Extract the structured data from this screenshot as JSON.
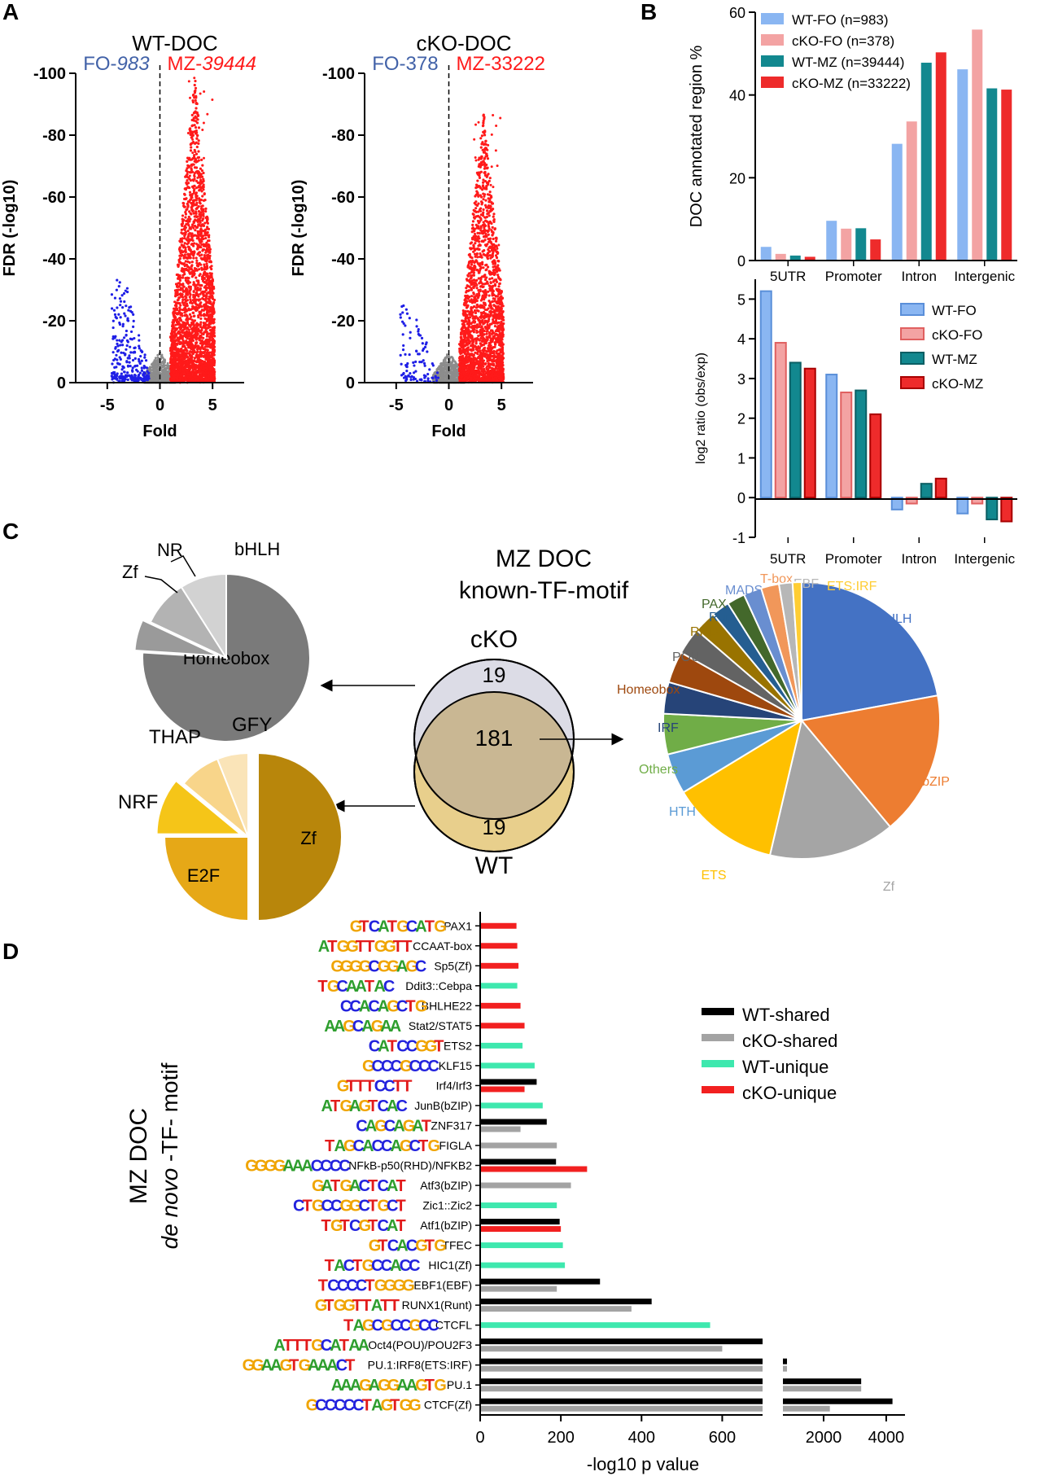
{
  "panels": {
    "A": "A",
    "B": "B",
    "C": "C",
    "D": "D"
  },
  "colors": {
    "blue": "#1f1fe6",
    "red": "#ff1a1a",
    "gray": "#8c8c8c",
    "wtfo": "#8ab6f2",
    "ckofo": "#f3a3a3",
    "wtmz": "#12888f",
    "ckomz": "#ee2b2b",
    "wt_shared": "#000000",
    "cko_shared": "#a3a3a3",
    "wt_unique": "#3ee8ae",
    "cko_unique": "#f22020"
  },
  "chart_data": [
    {
      "id": "volcano-wt",
      "type": "scatter",
      "title": "WT-DOC",
      "left_label": {
        "prefix": "FO-",
        "num": "983"
      },
      "right_label": {
        "prefix": "MZ-",
        "num": "39444"
      },
      "xlabel": "Fold",
      "ylabel": "FDR (-log10)",
      "xlim": [
        -8,
        8
      ],
      "ylim": [
        0,
        -100
      ],
      "xticks": [
        "-5",
        "0",
        "5"
      ],
      "yticks": [
        "-100",
        "-80",
        "-60",
        "-40",
        "-20",
        "0"
      ],
      "fo_count": 983,
      "mz_count": 39444,
      "fo_max_fdr": 38,
      "mz_max_fdr": 99
    },
    {
      "id": "volcano-cko",
      "type": "scatter",
      "title": "cKO-DOC",
      "left_label": {
        "prefix": "FO-",
        "num": "378"
      },
      "right_label": {
        "prefix": "MZ-",
        "num": "33222"
      },
      "xlabel": "Fold",
      "ylabel": "FDR (-log10)",
      "xlim": [
        -8,
        8
      ],
      "ylim": [
        0,
        -100
      ],
      "xticks": [
        "-5",
        "0",
        "5"
      ],
      "yticks": [
        "-100",
        "-80",
        "-60",
        "-40",
        "-20",
        "0"
      ],
      "fo_count": 378,
      "mz_count": 33222,
      "fo_max_fdr": 28,
      "mz_max_fdr": 87
    },
    {
      "id": "annot-bar",
      "type": "bar",
      "ylabel": "DOC annotated region %",
      "ylim": [
        0,
        60
      ],
      "yticks": [
        "0",
        "20",
        "40",
        "60"
      ],
      "categories": [
        "5UTR",
        "Promoter",
        "Intron",
        "Intergenic"
      ],
      "series": [
        {
          "name": "WT-FO (n=983)",
          "color": "#8ab6f2",
          "values": [
            3.3,
            9.6,
            28.2,
            46.2
          ]
        },
        {
          "name": "cKO-FO (n=378)",
          "color": "#f3a3a3",
          "values": [
            1.6,
            7.7,
            33.6,
            55.8
          ]
        },
        {
          "name": "WT-MZ (n=39444)",
          "color": "#12888f",
          "values": [
            1.2,
            7.8,
            47.8,
            41.6
          ]
        },
        {
          "name": "cKO-MZ (n=33222)",
          "color": "#ee2b2b",
          "values": [
            0.9,
            5.1,
            50.3,
            41.3
          ]
        }
      ],
      "legend_position": "top-left"
    },
    {
      "id": "log2-bar",
      "type": "bar",
      "ylabel": "log2 ratio (obs/exp)",
      "ylim": [
        -1,
        5.5
      ],
      "yticks": [
        "-1",
        "0",
        "1",
        "2",
        "3",
        "4",
        "5"
      ],
      "categories": [
        "5UTR",
        "Promoter",
        "Intron",
        "Intergenic"
      ],
      "series": [
        {
          "name": "WT-FO",
          "color": "#8ab6f2",
          "values": [
            5.2,
            3.1,
            -0.3,
            -0.4
          ]
        },
        {
          "name": "cKO-FO",
          "color": "#f3a3a3",
          "values": [
            3.9,
            2.65,
            -0.15,
            -0.15
          ]
        },
        {
          "name": "WT-MZ",
          "color": "#12888f",
          "values": [
            3.4,
            2.7,
            0.35,
            -0.55
          ]
        },
        {
          "name": "cKO-MZ",
          "color": "#ee2b2b",
          "values": [
            3.25,
            2.1,
            0.48,
            -0.6
          ]
        }
      ],
      "legend_position": "top-right"
    },
    {
      "id": "venn",
      "type": "other",
      "title_line1": "MZ DOC",
      "title_line2": "known-TF-motif",
      "top_label": "cKO",
      "bottom_label": "WT",
      "cko_only": "19",
      "shared": "181",
      "wt_only": "19"
    },
    {
      "id": "pie-cko-unique",
      "type": "pie",
      "slices": [
        {
          "label": "Homeobox",
          "value": 76,
          "color": "#7a7a7a"
        },
        {
          "label": "Zf",
          "value": 6,
          "color": "#9a9a9a"
        },
        {
          "label": "NR",
          "value": 9,
          "color": "#b3b3b3"
        },
        {
          "label": "bHLH",
          "value": 9,
          "color": "#d2d2d2"
        }
      ]
    },
    {
      "id": "pie-wt-unique",
      "type": "pie",
      "slices": [
        {
          "label": "Zf",
          "value": 50,
          "color": "#b8860b"
        },
        {
          "label": "E2F",
          "value": 25,
          "color": "#e6a817"
        },
        {
          "label": "NRF",
          "value": 11,
          "color": "#f5c518"
        },
        {
          "label": "THAP",
          "value": 8,
          "color": "#f8d58a"
        },
        {
          "label": "GFY",
          "value": 6,
          "color": "#fae4b8"
        }
      ]
    },
    {
      "id": "pie-shared",
      "type": "pie",
      "slices": [
        {
          "label": "bHLH",
          "value": 21,
          "color": "#4472c4"
        },
        {
          "label": "bZIP",
          "value": 16,
          "color": "#ed7d31"
        },
        {
          "label": "Zf",
          "value": 14,
          "color": "#a5a5a5"
        },
        {
          "label": "ETS",
          "value": 12,
          "color": "#ffc000"
        },
        {
          "label": "HTH",
          "value": 4.5,
          "color": "#5b9bd5"
        },
        {
          "label": "Others",
          "value": 4.5,
          "color": "#70ad47"
        },
        {
          "label": "IRF",
          "value": 3.5,
          "color": "#264478"
        },
        {
          "label": "Homeobox",
          "value": 3.5,
          "color": "#9e480e"
        },
        {
          "label": "POU",
          "value": 3,
          "color": "#636363"
        },
        {
          "label": "RHD",
          "value": 2.5,
          "color": "#997300"
        },
        {
          "label": "Runt",
          "value": 2,
          "color": "#255e91"
        },
        {
          "label": "PAX",
          "value": 2,
          "color": "#43682b"
        },
        {
          "label": "MADS",
          "value": 2,
          "color": "#698ed0"
        },
        {
          "label": "T-box",
          "value": 2,
          "color": "#f1975a"
        },
        {
          "label": "EBF",
          "value": 1.5,
          "color": "#b7b7b7"
        },
        {
          "label": "ETS:IRF",
          "value": 1,
          "color": "#ffcd33"
        }
      ],
      "label_colors": {
        "bHLH": "#4472c4",
        "bZIP": "#ed7d31",
        "Zf": "#a5a5a5",
        "ETS": "#ffc000",
        "HTH": "#5b9bd5",
        "Others": "#70ad47",
        "IRF": "#264478",
        "Homeobox": "#9e480e",
        "POU": "#636363",
        "RHD": "#997300",
        "Runt": "#255e91",
        "PAX": "#43682b",
        "MADS": "#698ed0",
        "T-box": "#f1975a",
        "EBF": "#b7b7b7",
        "ETS:IRF": "#ffcd33"
      }
    },
    {
      "id": "motif-bars",
      "type": "bar",
      "orientation": "horizontal",
      "ylabel_line1": "MZ DOC",
      "ylabel_line2_italic": "de novo",
      "ylabel_line2_rest": " -TF- motif",
      "xlabel": "-log10 p value",
      "xticks_left": [
        "0",
        "200",
        "400",
        "600"
      ],
      "xticks_right": [
        "2000",
        "4000"
      ],
      "xlim_left": [
        0,
        700
      ],
      "xlim_right": [
        700,
        4600
      ],
      "legend": [
        {
          "name": "WT-shared",
          "color": "#000000"
        },
        {
          "name": "cKO-shared",
          "color": "#a3a3a3"
        },
        {
          "name": "WT-unique",
          "color": "#3ee8ae"
        },
        {
          "name": "cKO-unique",
          "color": "#f22020"
        }
      ],
      "motifs": [
        {
          "label": "PAX1",
          "logo": "GTCATGCATG",
          "bars": [
            {
              "g": "cko-unique",
              "v": 90
            }
          ]
        },
        {
          "label": "CCAAT-box",
          "logo": "ATGGTTGGTT",
          "bars": [
            {
              "g": "cko-unique",
              "v": 92
            }
          ]
        },
        {
          "label": "Sp5(Zf)",
          "logo": "GGGGCGGAGC",
          "bars": [
            {
              "g": "cko-unique",
              "v": 95
            }
          ]
        },
        {
          "label": "Ddit3::Cebpa",
          "logo": "TGCAATAC",
          "bars": [
            {
              "g": "wt-unique",
              "v": 92
            }
          ]
        },
        {
          "label": "BHLHE22",
          "logo": "CCACAGCTG",
          "bars": [
            {
              "g": "cko-unique",
              "v": 100
            }
          ]
        },
        {
          "label": "Stat2/STAT5",
          "logo": "AAGCAGAA",
          "bars": [
            {
              "g": "cko-unique",
              "v": 110
            }
          ]
        },
        {
          "label": "ETS2",
          "logo": "CATCCGGT",
          "bars": [
            {
              "g": "wt-unique",
              "v": 105
            }
          ]
        },
        {
          "label": "KLF15",
          "logo": "GCCCGCCC",
          "bars": [
            {
              "g": "wt-unique",
              "v": 135
            }
          ]
        },
        {
          "label": "Irf4/Irf3",
          "logo": "GTTTCCTT",
          "bars": [
            {
              "g": "wt-shared",
              "v": 140
            },
            {
              "g": "cko-unique",
              "v": 110
            }
          ]
        },
        {
          "label": "JunB(bZIP)",
          "logo": "ATGAGTCAC",
          "bars": [
            {
              "g": "wt-unique",
              "v": 155
            }
          ]
        },
        {
          "label": "ZNF317",
          "logo": "CAGCAGAT",
          "bars": [
            {
              "g": "wt-shared",
              "v": 165
            },
            {
              "g": "cko-shared",
              "v": 100
            }
          ]
        },
        {
          "label": "FIGLA",
          "logo": "TAGCACCAGCTG",
          "bars": [
            {
              "g": "cko-shared",
              "v": 190
            }
          ]
        },
        {
          "label": "NFkB-p50(RHD)/NFKB2",
          "logo": "GGGGAAACCCC",
          "bars": [
            {
              "g": "wt-shared",
              "v": 188
            },
            {
              "g": "cko-unique",
              "v": 265
            }
          ]
        },
        {
          "label": "Atf3(bZIP)",
          "logo": "GATGACTCAT",
          "bars": [
            {
              "g": "cko-shared",
              "v": 225
            }
          ]
        },
        {
          "label": "Zic1::Zic2",
          "logo": "CTGCCGGCTGCT",
          "bars": [
            {
              "g": "wt-unique",
              "v": 190
            }
          ]
        },
        {
          "label": "Atf1(bZIP)",
          "logo": "TGTCGTCAT",
          "bars": [
            {
              "g": "wt-shared",
              "v": 197
            },
            {
              "g": "cko-unique",
              "v": 200
            }
          ]
        },
        {
          "label": "TFEC",
          "logo": "GTCACGTG",
          "bars": [
            {
              "g": "wt-unique",
              "v": 205
            }
          ]
        },
        {
          "label": "HIC1(Zf)",
          "logo": "TACTGCCACC",
          "bars": [
            {
              "g": "wt-unique",
              "v": 210
            }
          ]
        },
        {
          "label": "EBF1(EBF)",
          "logo": "TCCCCTGGGG",
          "bars": [
            {
              "g": "wt-shared",
              "v": 297
            },
            {
              "g": "cko-shared",
              "v": 190
            }
          ]
        },
        {
          "label": "RUNX1(Runt)",
          "logo": "GTGGTTATT",
          "bars": [
            {
              "g": "wt-shared",
              "v": 425
            },
            {
              "g": "cko-shared",
              "v": 375
            }
          ]
        },
        {
          "label": "CTCFL",
          "logo": "TAGCGCCGCC",
          "bars": [
            {
              "g": "wt-unique",
              "v": 570
            }
          ]
        },
        {
          "label": "Oct4(POU)/POU2F3",
          "logo": "ATTTGCATAA",
          "bars": [
            {
              "g": "wt-shared",
              "v": 700
            },
            {
              "g": "cko-shared",
              "v": 600
            }
          ]
        },
        {
          "label": "PU.1:IRF8(ETS:IRF)",
          "logo": "GGAAGTGAAACT",
          "bars": [
            {
              "g": "wt-shared",
              "v": 720
            },
            {
              "g": "cko-shared",
              "v": 710
            }
          ]
        },
        {
          "label": "PU.1",
          "logo": "AAAGAGGAAGTG",
          "bars": [
            {
              "g": "wt-shared",
              "v": 3200
            },
            {
              "g": "cko-shared",
              "v": 3200
            }
          ]
        },
        {
          "label": "CTCF(Zf)",
          "logo": "GCCCCCTAGTGG",
          "bars": [
            {
              "g": "wt-shared",
              "v": 4200
            },
            {
              "g": "cko-shared",
              "v": 2200
            }
          ]
        }
      ]
    }
  ]
}
